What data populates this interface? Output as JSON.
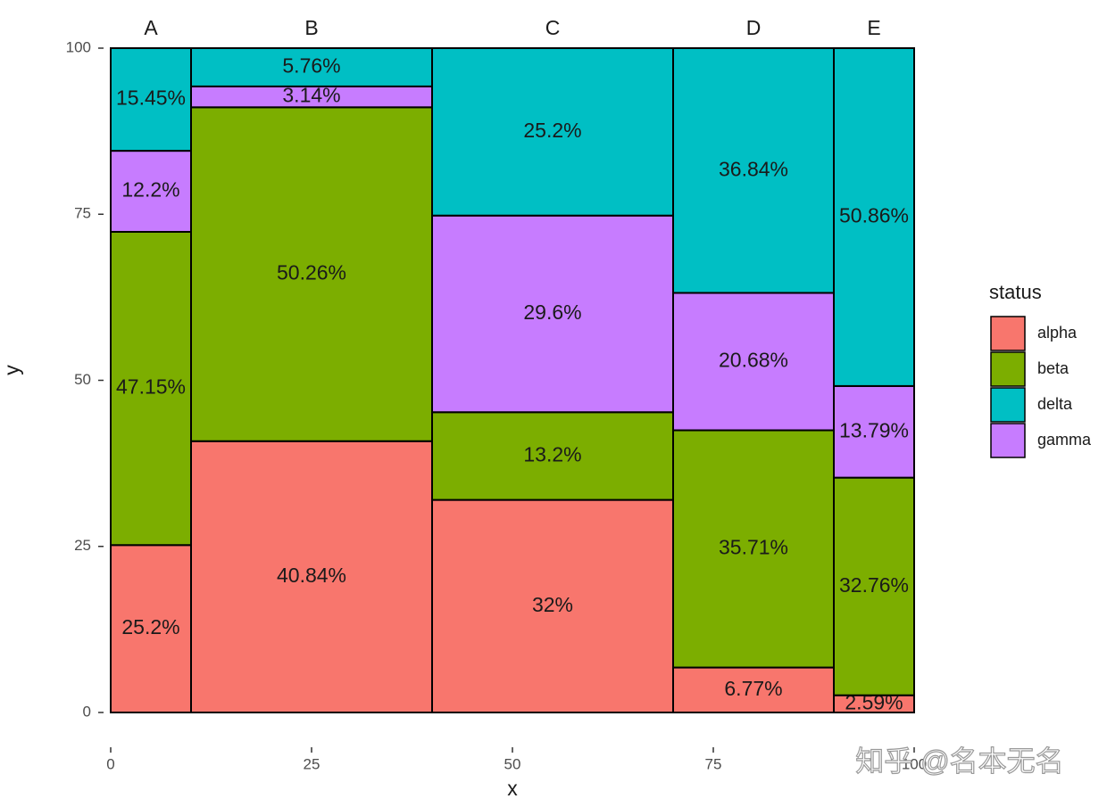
{
  "chart_data": {
    "type": "mosaic",
    "categories": [
      "A",
      "B",
      "C",
      "D",
      "E"
    ],
    "widths": [
      10,
      30,
      30,
      20,
      10
    ],
    "stack_order": [
      "alpha",
      "beta",
      "gamma",
      "delta"
    ],
    "series": [
      {
        "name": "alpha",
        "color": "#f8766d",
        "values": [
          25.2,
          40.84,
          32,
          6.77,
          2.59
        ],
        "value_labels": [
          "25.2%",
          "40.84%",
          "32%",
          "6.77%",
          "2.59%"
        ]
      },
      {
        "name": "beta",
        "color": "#7cae00",
        "values": [
          47.15,
          50.26,
          13.2,
          35.71,
          32.76
        ],
        "value_labels": [
          "47.15%",
          "50.26%",
          "13.2%",
          "35.71%",
          "32.76%"
        ]
      },
      {
        "name": "delta",
        "color": "#00bfc4",
        "values": [
          15.45,
          5.76,
          25.2,
          36.84,
          50.86
        ],
        "value_labels": [
          "15.45%",
          "5.76%",
          "25.2%",
          "36.84%",
          "50.86%"
        ]
      },
      {
        "name": "gamma",
        "color": "#c77cff",
        "values": [
          12.2,
          3.14,
          29.6,
          20.68,
          13.79
        ],
        "value_labels": [
          "12.2%",
          "3.14%",
          "29.6%",
          "20.68%",
          "13.79%"
        ]
      }
    ],
    "xlim": [
      0,
      100
    ],
    "ylim": [
      0,
      100
    ],
    "xticks": [
      0,
      25,
      50,
      75,
      100
    ],
    "yticks": [
      0,
      25,
      50,
      75,
      100
    ],
    "xlabel": "x",
    "ylabel": "y",
    "legend_title": "status",
    "watermark": "知乎 @名本无名"
  }
}
